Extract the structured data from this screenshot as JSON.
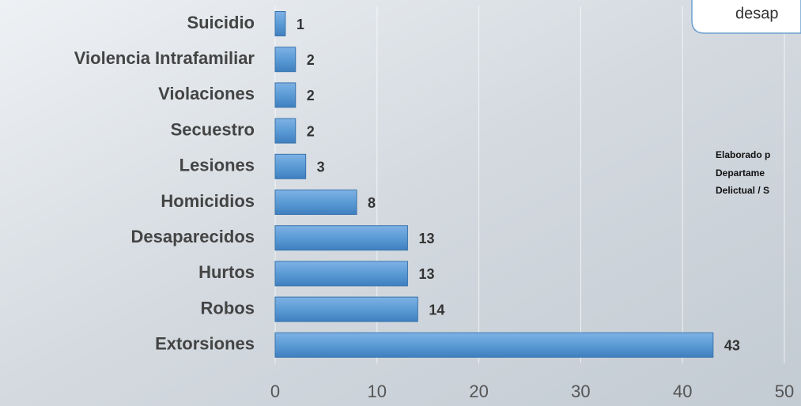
{
  "chart_data": {
    "type": "barh",
    "categories": [
      "Suicidio",
      "Violencia Intrafamiliar",
      "Violaciones",
      "Secuestro",
      "Lesiones",
      "Homicidios",
      "Desaparecidos",
      "Hurtos",
      "Robos",
      "Extorsiones"
    ],
    "values": [
      1,
      2,
      2,
      2,
      3,
      8,
      13,
      13,
      14,
      43
    ],
    "color": "#5b9bd5",
    "xlim": [
      0,
      50
    ],
    "xticks": [
      0,
      10,
      20,
      30,
      40,
      50
    ],
    "grid": true,
    "callout": "desap",
    "note": [
      "Elaborado p",
      "Departame",
      "Delictual / S"
    ]
  }
}
